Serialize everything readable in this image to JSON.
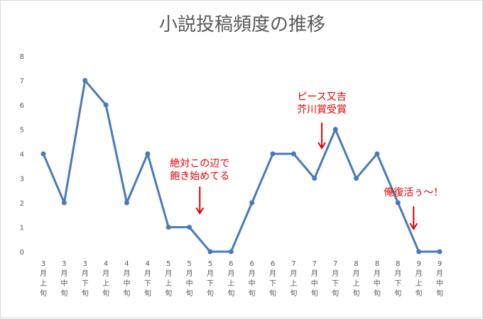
{
  "chart_data": {
    "type": "line",
    "title": "小説投稿頻度の推移",
    "xlabel": "",
    "ylabel": "",
    "ylim": [
      0,
      8
    ],
    "yticks": [
      0,
      1,
      2,
      3,
      4,
      5,
      6,
      7,
      8
    ],
    "grid": false,
    "legend": "none",
    "categories": [
      "3月上旬",
      "3月中旬",
      "3月下旬",
      "4月上旬",
      "4月中旬",
      "4月下旬",
      "5月上旬",
      "5月中旬",
      "5月下旬",
      "6月上旬",
      "6月中旬",
      "6月下旬",
      "7月上旬",
      "7月中旬",
      "7月下旬",
      "8月上旬",
      "8月中旬",
      "8月下旬",
      "9月上旬",
      "9月中旬"
    ],
    "values": [
      4,
      2,
      7,
      6,
      2,
      4,
      1,
      1,
      0,
      0,
      2,
      4,
      4,
      3,
      5,
      3,
      4,
      2,
      0,
      0
    ],
    "series_color": "#4a7ab8",
    "annotations": [
      {
        "lines": [
          "絶対この辺で",
          "飽き始めてる"
        ],
        "arrow_at_index": 7.5,
        "color": "#e00000"
      },
      {
        "lines": [
          "ピース又吉",
          "芥川賞受賞"
        ],
        "arrow_at_index": 13.35,
        "color": "#e00000"
      },
      {
        "lines": [
          "俺復活ぅ〜！"
        ],
        "arrow_at_index": 17.75,
        "color": "#e00000"
      }
    ]
  }
}
